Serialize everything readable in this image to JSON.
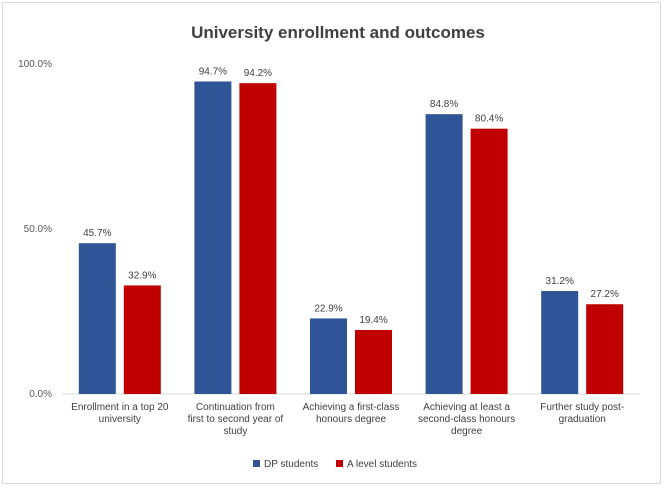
{
  "chart_data": {
    "type": "bar",
    "title": "University enrollment and outcomes",
    "categories": [
      [
        "Enrollment in a top 20",
        "university"
      ],
      [
        "Continuation from",
        "first to second year of",
        "study"
      ],
      [
        "Achieving a first-class",
        "honours degree"
      ],
      [
        "Achieving at least a",
        "second-class honours",
        "degree"
      ],
      [
        "Further study post-",
        "graduation"
      ]
    ],
    "series": [
      {
        "name": "DP students",
        "color": "#2f5597",
        "values": [
          45.7,
          94.7,
          22.9,
          84.8,
          31.2
        ],
        "labels": [
          "45.7%",
          "94.7%",
          "22.9%",
          "84.8%",
          "31.2%"
        ]
      },
      {
        "name": "A level students",
        "color": "#c00000",
        "values": [
          32.9,
          94.2,
          19.4,
          80.4,
          27.2
        ],
        "labels": [
          "32.9%",
          "94.2%",
          "19.4%",
          "80.4%",
          "27.2%"
        ]
      }
    ],
    "y_ticks": [
      "0.0%",
      "50.0%",
      "100.0%"
    ],
    "y_tick_values": [
      0,
      50,
      100
    ],
    "ylim": [
      0,
      100
    ],
    "grid": false,
    "legend_position": "bottom"
  }
}
